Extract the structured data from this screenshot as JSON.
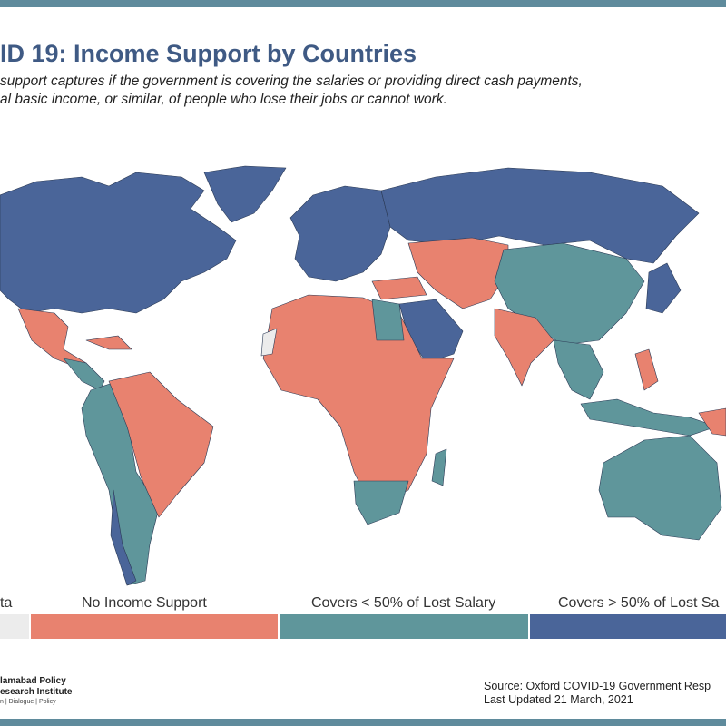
{
  "header": {
    "title": "ID 19: Income Support by Countries",
    "subtitle": [
      "support captures if the government is covering the salaries or providing direct cash payments,",
      "al basic income, or similar, of people who lose their jobs or cannot work."
    ]
  },
  "legend": {
    "items": [
      {
        "label": "ta",
        "color": "#ececec"
      },
      {
        "label": "No Income Support",
        "color": "#e8826f"
      },
      {
        "label": "Covers < 50% of Lost Salary",
        "color": "#5f969b"
      },
      {
        "label": "Covers > 50% of Lost Sa",
        "color": "#4a6599"
      }
    ]
  },
  "logo": {
    "lines": [
      "lamabad Policy",
      "esearch Institute",
      "n | Dialogue | Policy"
    ]
  },
  "source": {
    "lines": [
      "Source: Oxford COVID-19 Government Resp",
      "Last Updated 21 March, 2021"
    ]
  }
}
